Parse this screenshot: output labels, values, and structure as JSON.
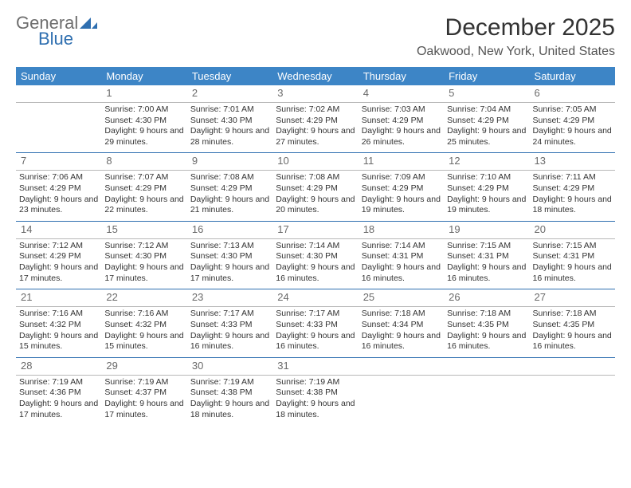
{
  "logo": {
    "line1": "General",
    "line2": "Blue"
  },
  "title": "December 2025",
  "location": "Oakwood, New York, United States",
  "colors": {
    "header_bg": "#3d85c6",
    "header_text": "#ffffff",
    "week_rule": "#2f6fb0",
    "day_rule": "#b8b8b8",
    "text": "#333333",
    "logo_gray": "#6e6e6e",
    "logo_blue": "#2f6fb0"
  },
  "dayHeaders": [
    "Sunday",
    "Monday",
    "Tuesday",
    "Wednesday",
    "Thursday",
    "Friday",
    "Saturday"
  ],
  "weeks": [
    [
      null,
      {
        "n": "1",
        "sr": "Sunrise: 7:00 AM",
        "ss": "Sunset: 4:30 PM",
        "dl": "Daylight: 9 hours and 29 minutes."
      },
      {
        "n": "2",
        "sr": "Sunrise: 7:01 AM",
        "ss": "Sunset: 4:30 PM",
        "dl": "Daylight: 9 hours and 28 minutes."
      },
      {
        "n": "3",
        "sr": "Sunrise: 7:02 AM",
        "ss": "Sunset: 4:29 PM",
        "dl": "Daylight: 9 hours and 27 minutes."
      },
      {
        "n": "4",
        "sr": "Sunrise: 7:03 AM",
        "ss": "Sunset: 4:29 PM",
        "dl": "Daylight: 9 hours and 26 minutes."
      },
      {
        "n": "5",
        "sr": "Sunrise: 7:04 AM",
        "ss": "Sunset: 4:29 PM",
        "dl": "Daylight: 9 hours and 25 minutes."
      },
      {
        "n": "6",
        "sr": "Sunrise: 7:05 AM",
        "ss": "Sunset: 4:29 PM",
        "dl": "Daylight: 9 hours and 24 minutes."
      }
    ],
    [
      {
        "n": "7",
        "sr": "Sunrise: 7:06 AM",
        "ss": "Sunset: 4:29 PM",
        "dl": "Daylight: 9 hours and 23 minutes."
      },
      {
        "n": "8",
        "sr": "Sunrise: 7:07 AM",
        "ss": "Sunset: 4:29 PM",
        "dl": "Daylight: 9 hours and 22 minutes."
      },
      {
        "n": "9",
        "sr": "Sunrise: 7:08 AM",
        "ss": "Sunset: 4:29 PM",
        "dl": "Daylight: 9 hours and 21 minutes."
      },
      {
        "n": "10",
        "sr": "Sunrise: 7:08 AM",
        "ss": "Sunset: 4:29 PM",
        "dl": "Daylight: 9 hours and 20 minutes."
      },
      {
        "n": "11",
        "sr": "Sunrise: 7:09 AM",
        "ss": "Sunset: 4:29 PM",
        "dl": "Daylight: 9 hours and 19 minutes."
      },
      {
        "n": "12",
        "sr": "Sunrise: 7:10 AM",
        "ss": "Sunset: 4:29 PM",
        "dl": "Daylight: 9 hours and 19 minutes."
      },
      {
        "n": "13",
        "sr": "Sunrise: 7:11 AM",
        "ss": "Sunset: 4:29 PM",
        "dl": "Daylight: 9 hours and 18 minutes."
      }
    ],
    [
      {
        "n": "14",
        "sr": "Sunrise: 7:12 AM",
        "ss": "Sunset: 4:29 PM",
        "dl": "Daylight: 9 hours and 17 minutes."
      },
      {
        "n": "15",
        "sr": "Sunrise: 7:12 AM",
        "ss": "Sunset: 4:30 PM",
        "dl": "Daylight: 9 hours and 17 minutes."
      },
      {
        "n": "16",
        "sr": "Sunrise: 7:13 AM",
        "ss": "Sunset: 4:30 PM",
        "dl": "Daylight: 9 hours and 17 minutes."
      },
      {
        "n": "17",
        "sr": "Sunrise: 7:14 AM",
        "ss": "Sunset: 4:30 PM",
        "dl": "Daylight: 9 hours and 16 minutes."
      },
      {
        "n": "18",
        "sr": "Sunrise: 7:14 AM",
        "ss": "Sunset: 4:31 PM",
        "dl": "Daylight: 9 hours and 16 minutes."
      },
      {
        "n": "19",
        "sr": "Sunrise: 7:15 AM",
        "ss": "Sunset: 4:31 PM",
        "dl": "Daylight: 9 hours and 16 minutes."
      },
      {
        "n": "20",
        "sr": "Sunrise: 7:15 AM",
        "ss": "Sunset: 4:31 PM",
        "dl": "Daylight: 9 hours and 16 minutes."
      }
    ],
    [
      {
        "n": "21",
        "sr": "Sunrise: 7:16 AM",
        "ss": "Sunset: 4:32 PM",
        "dl": "Daylight: 9 hours and 15 minutes."
      },
      {
        "n": "22",
        "sr": "Sunrise: 7:16 AM",
        "ss": "Sunset: 4:32 PM",
        "dl": "Daylight: 9 hours and 15 minutes."
      },
      {
        "n": "23",
        "sr": "Sunrise: 7:17 AM",
        "ss": "Sunset: 4:33 PM",
        "dl": "Daylight: 9 hours and 16 minutes."
      },
      {
        "n": "24",
        "sr": "Sunrise: 7:17 AM",
        "ss": "Sunset: 4:33 PM",
        "dl": "Daylight: 9 hours and 16 minutes."
      },
      {
        "n": "25",
        "sr": "Sunrise: 7:18 AM",
        "ss": "Sunset: 4:34 PM",
        "dl": "Daylight: 9 hours and 16 minutes."
      },
      {
        "n": "26",
        "sr": "Sunrise: 7:18 AM",
        "ss": "Sunset: 4:35 PM",
        "dl": "Daylight: 9 hours and 16 minutes."
      },
      {
        "n": "27",
        "sr": "Sunrise: 7:18 AM",
        "ss": "Sunset: 4:35 PM",
        "dl": "Daylight: 9 hours and 16 minutes."
      }
    ],
    [
      {
        "n": "28",
        "sr": "Sunrise: 7:19 AM",
        "ss": "Sunset: 4:36 PM",
        "dl": "Daylight: 9 hours and 17 minutes."
      },
      {
        "n": "29",
        "sr": "Sunrise: 7:19 AM",
        "ss": "Sunset: 4:37 PM",
        "dl": "Daylight: 9 hours and 17 minutes."
      },
      {
        "n": "30",
        "sr": "Sunrise: 7:19 AM",
        "ss": "Sunset: 4:38 PM",
        "dl": "Daylight: 9 hours and 18 minutes."
      },
      {
        "n": "31",
        "sr": "Sunrise: 7:19 AM",
        "ss": "Sunset: 4:38 PM",
        "dl": "Daylight: 9 hours and 18 minutes."
      },
      null,
      null,
      null
    ]
  ]
}
